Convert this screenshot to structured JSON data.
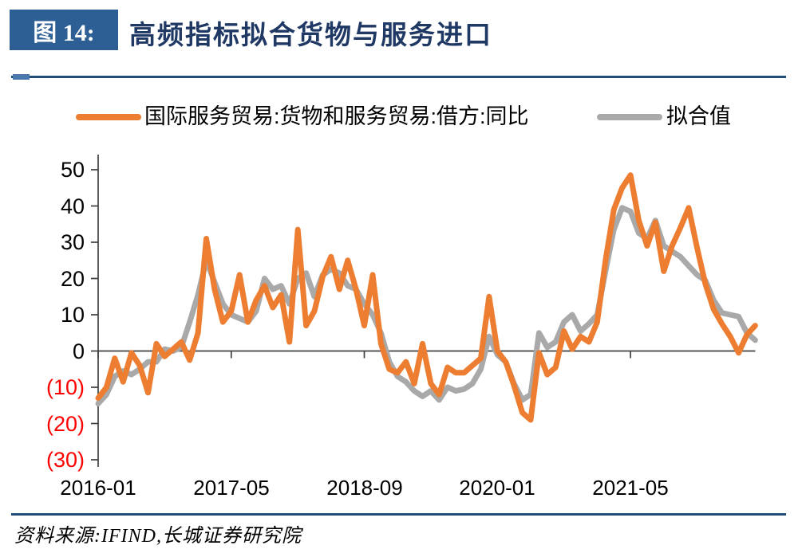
{
  "header": {
    "figure_label": "图 14:",
    "title": "高频指标拟合货物与服务进口"
  },
  "legend": [
    {
      "label": "国际服务贸易:货物和服务贸易:借方:同比",
      "color": "#ED7D31"
    },
    {
      "label": "拟合值",
      "color": "#A9A9A9"
    }
  ],
  "footer": {
    "source": "资料来源:IFIND,长城证券研究院"
  },
  "colors": {
    "header_box": "#2E5F94",
    "title_text": "#1F3864",
    "rule": "#1F4E79",
    "axis": "#404040",
    "negative_tick": "#FF0000",
    "series_main": "#ED7D31",
    "series_fitted": "#A9A9A9"
  },
  "chart_data": {
    "type": "line",
    "title": "高频指标拟合货物与服务进口",
    "x_start": "2016-01",
    "x_end": "2022-08",
    "x_freq": "monthly",
    "ylim": [
      -30,
      50
    ],
    "grid": false,
    "legend_position": "top",
    "yticks": [
      {
        "label": "50",
        "value": 50,
        "color": "#000000"
      },
      {
        "label": "40",
        "value": 40,
        "color": "#000000"
      },
      {
        "label": "30",
        "value": 30,
        "color": "#000000"
      },
      {
        "label": "20",
        "value": 20,
        "color": "#000000"
      },
      {
        "label": "10",
        "value": 10,
        "color": "#000000"
      },
      {
        "label": "0",
        "value": 0,
        "color": "#000000"
      },
      {
        "label": "(10)",
        "value": -10,
        "color": "#FF0000"
      },
      {
        "label": "(20)",
        "value": -20,
        "color": "#FF0000"
      },
      {
        "label": "(30)",
        "value": -30,
        "color": "#FF0000"
      }
    ],
    "xticks": [
      {
        "label": "2016-01",
        "month_index": 0
      },
      {
        "label": "2017-05",
        "month_index": 16
      },
      {
        "label": "2018-09",
        "month_index": 32
      },
      {
        "label": "2020-01",
        "month_index": 48
      },
      {
        "label": "2021-05",
        "month_index": 64
      }
    ],
    "series": [
      {
        "name": "国际服务贸易:货物和服务贸易:借方:同比",
        "color": "#ED7D31",
        "values": [
          -13,
          -10,
          -2,
          -8.5,
          -0.5,
          -4,
          -11.5,
          2,
          -1.5,
          0.5,
          2.5,
          -2.5,
          5,
          31,
          17,
          8,
          11,
          21,
          8,
          14,
          18,
          12,
          15.5,
          2.5,
          33.5,
          7,
          11,
          20.5,
          26,
          17,
          25,
          17,
          7,
          21,
          2,
          -5,
          -6,
          -3,
          -9,
          2,
          -9,
          -12,
          -4.5,
          -6,
          -6,
          -4,
          -2,
          15,
          0,
          -3,
          -9.5,
          -17,
          -19,
          -0.5,
          -6.5,
          -4.5,
          5.5,
          0.5,
          4,
          2.5,
          8,
          25,
          39,
          45,
          48.5,
          36,
          29,
          35.5,
          22,
          29,
          34,
          39.5,
          28.5,
          18.5,
          11.5,
          7.5,
          4,
          -0.5,
          4.5,
          7
        ]
      },
      {
        "name": "拟合值",
        "color": "#A9A9A9",
        "values": [
          -14.5,
          -12,
          -7,
          -5.5,
          -6.5,
          -5,
          -3,
          -3,
          0.5,
          0,
          1,
          8,
          15.5,
          25,
          19,
          13,
          10,
          9,
          8,
          11,
          20,
          17,
          18,
          13,
          20,
          21.5,
          15,
          21,
          22.5,
          21.5,
          18,
          17,
          13,
          10,
          5,
          -3,
          -7,
          -8.5,
          -11,
          -12.5,
          -11,
          -13.5,
          -10,
          -11,
          -10.5,
          -9,
          -5,
          4,
          -1,
          -3,
          -9,
          -13.5,
          -12,
          5,
          1,
          2.5,
          8,
          10,
          5.5,
          7.5,
          10,
          22,
          33.5,
          39.5,
          38.5,
          32.5,
          31,
          36,
          29,
          27.5,
          26,
          23.5,
          21,
          19.5,
          14,
          10.5,
          10,
          9.5,
          5,
          3
        ]
      }
    ]
  }
}
